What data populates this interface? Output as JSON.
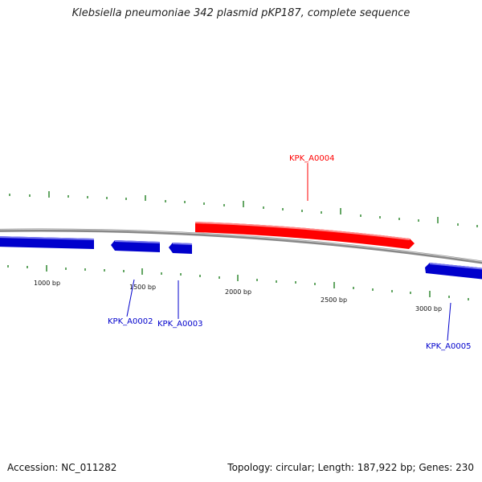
{
  "header": {
    "title": "Klebsiella pneumoniae 342 plasmid pKP187, complete sequence"
  },
  "footer": {
    "accession": "Accession: NC_011282",
    "summary": "Topology: circular; Length: 187,922 bp; Genes: 230"
  },
  "map": {
    "backbone_color": "#888888",
    "forward_color": "#ff0000",
    "reverse_color": "#0000cc",
    "tick_color": "#117711",
    "scale_labels": [
      "1000 bp",
      "1500 bp",
      "2000 bp",
      "2500 bp",
      "3000 bp"
    ],
    "genes": [
      {
        "name": "",
        "strand": "reverse"
      },
      {
        "name": "KPK_A0002",
        "strand": "reverse"
      },
      {
        "name": "KPK_A0003",
        "strand": "reverse"
      },
      {
        "name": "KPK_A0004",
        "strand": "forward"
      },
      {
        "name": "KPK_A0005",
        "strand": "reverse"
      }
    ]
  }
}
